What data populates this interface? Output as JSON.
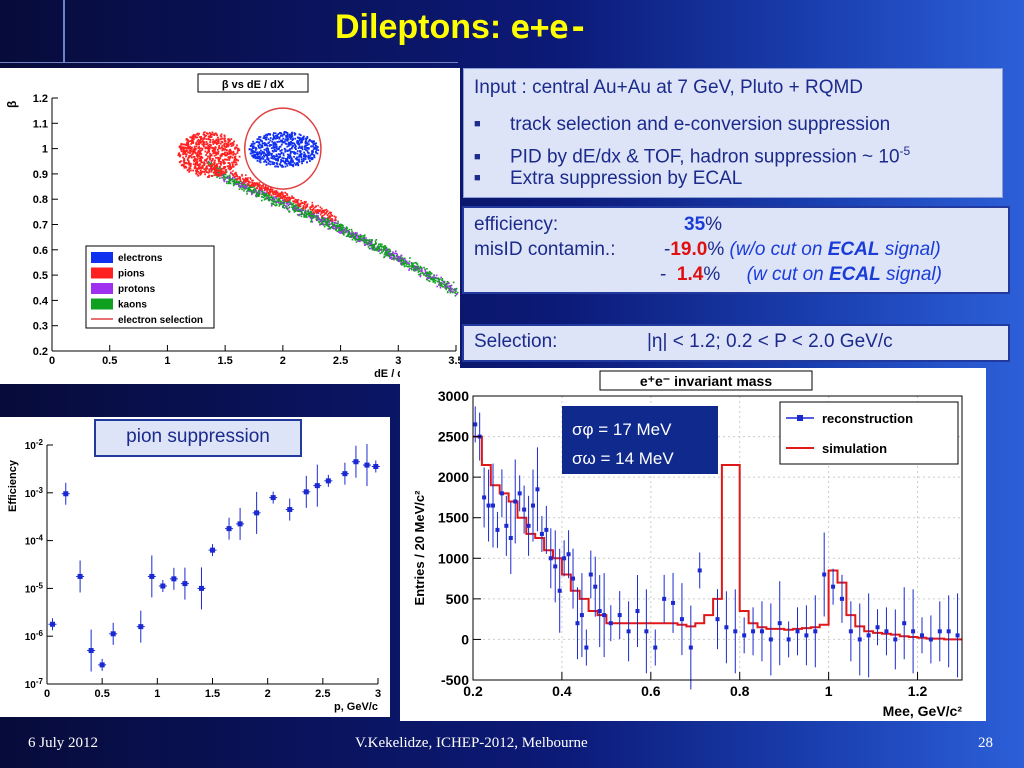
{
  "slide": {
    "title_main": "Dileptons:",
    "title_ee": "e+e-",
    "footer_date": "6 July 2012",
    "footer_author": "V.Kekelidze, ICHEP-2012, Melbourne",
    "footer_page": "28"
  },
  "input_box": {
    "line1": "Input : central Au+Au at 7 GeV, Pluto + RQMD",
    "bullets": [
      "track selection and e-conversion suppression",
      "PID by dE/dx & TOF, hadron suppression ~ 10",
      "Extra suppression by ECAL"
    ],
    "bullet2_exp": "-5"
  },
  "efficiency_box": {
    "eff_label": "efficiency:",
    "eff_value": "35",
    "eff_unit": "%",
    "misid_label": "misID contamin.:",
    "misid1_prefix": "-",
    "misid1_value": "19.0",
    "misid1_unit": "%",
    "misid1_note_a": "(w/o cut on ",
    "misid1_note_b": "ECAL",
    "misid1_note_c": " signal)",
    "misid2_prefix": "-",
    "misid2_value": "1.4",
    "misid2_unit": "%",
    "misid2_note_a": "(w cut on ",
    "misid2_note_b": "ECAL",
    "misid2_note_c": " signal)"
  },
  "selection_box": {
    "label": "Selection:",
    "value": "|η| < 1.2;    0.2 < P < 2.0 GeV/c"
  },
  "pion_label": "pion suppression",
  "colors": {
    "electrons": "#1030f0",
    "pions": "#ff2020",
    "protons": "#a030f0",
    "kaons": "#10a020",
    "electron_selection": "#e04040",
    "reco": "#1a2ad0",
    "sim": "#e01818"
  },
  "chart_data": [
    {
      "type": "scatter",
      "title": "β vs dE / dX",
      "xlabel": "dE / dX, keV/cm",
      "ylabel": "β",
      "xlim": [
        0,
        3.5
      ],
      "ylim": [
        0.2,
        1.2
      ],
      "xticks": [
        "0",
        "0.5",
        "1",
        "1.5",
        "2",
        "2.5",
        "3",
        "3.5"
      ],
      "yticks": [
        "0.2",
        "0.3",
        "0.4",
        "0.5",
        "0.6",
        "0.7",
        "0.8",
        "0.9",
        "1",
        "1.1",
        "1.2"
      ],
      "legend": [
        "electrons",
        "pions",
        "protons",
        "kaons",
        "electron selection"
      ],
      "legend_position": "bottom-left",
      "regions": {
        "electrons_center": [
          2.0,
          1.0
        ],
        "pions_center": [
          1.35,
          0.98
        ],
        "selection_ellipse_center": [
          2.0,
          1.0
        ],
        "selection_ellipse_radii": [
          0.33,
          0.16
        ]
      }
    },
    {
      "type": "scatter",
      "title": "",
      "xlabel": "p, GeV/c",
      "ylabel": "Efficiency",
      "log_y": true,
      "xlim": [
        0,
        3
      ],
      "ylim_exp": [
        -7,
        -2
      ],
      "xticks": [
        "0",
        "0.5",
        "1",
        "1.5",
        "2",
        "2.5",
        "3"
      ],
      "yticks_exp": [
        "-7",
        "-6",
        "-5",
        "-4",
        "-3",
        "-2"
      ],
      "points": [
        [
          0.05,
          -5.75
        ],
        [
          0.17,
          -3.02
        ],
        [
          0.3,
          -4.75
        ],
        [
          0.4,
          -6.3
        ],
        [
          0.5,
          -6.6
        ],
        [
          0.6,
          -5.95
        ],
        [
          0.85,
          -5.8
        ],
        [
          0.95,
          -4.75
        ],
        [
          1.05,
          -4.95
        ],
        [
          1.15,
          -4.8
        ],
        [
          1.25,
          -4.9
        ],
        [
          1.4,
          -5.0
        ],
        [
          1.5,
          -4.2
        ],
        [
          1.65,
          -3.75
        ],
        [
          1.75,
          -3.65
        ],
        [
          1.9,
          -3.42
        ],
        [
          2.05,
          -3.1
        ],
        [
          2.2,
          -3.35
        ],
        [
          2.35,
          -2.98
        ],
        [
          2.45,
          -2.85
        ],
        [
          2.55,
          -2.75
        ],
        [
          2.7,
          -2.6
        ],
        [
          2.8,
          -2.35
        ],
        [
          2.9,
          -2.42
        ],
        [
          2.98,
          -2.45
        ]
      ]
    },
    {
      "type": "line",
      "title": "e⁺e⁻ invariant mass",
      "xlabel": "Mee, GeV/c²",
      "ylabel": "Entries / 20 MeV/c²",
      "xlim": [
        0.2,
        1.3
      ],
      "ylim": [
        -500,
        3000
      ],
      "xticks": [
        "0.2",
        "0.4",
        "0.6",
        "0.8",
        "1",
        "1.2"
      ],
      "yticks": [
        "-500",
        "0",
        "500",
        "1000",
        "1500",
        "2000",
        "2500",
        "3000"
      ],
      "legend": [
        "reconstruction",
        "simulation"
      ],
      "legend_position": "top-right",
      "annotation": [
        "σφ = 17 MeV",
        "σω = 14 MeV"
      ],
      "series": [
        {
          "name": "simulation",
          "x": [
            0.2,
            0.22,
            0.24,
            0.26,
            0.28,
            0.3,
            0.32,
            0.34,
            0.36,
            0.38,
            0.4,
            0.42,
            0.44,
            0.46,
            0.48,
            0.5,
            0.52,
            0.54,
            0.56,
            0.58,
            0.6,
            0.62,
            0.64,
            0.66,
            0.68,
            0.7,
            0.72,
            0.74,
            0.76,
            0.78,
            0.8,
            0.82,
            0.84,
            0.86,
            0.88,
            0.9,
            0.92,
            0.94,
            0.96,
            0.98,
            1.0,
            1.02,
            1.04,
            1.06,
            1.08,
            1.1,
            1.12,
            1.14,
            1.16,
            1.18,
            1.2,
            1.22,
            1.24,
            1.26,
            1.28
          ],
          "values": [
            2500,
            2150,
            1900,
            1800,
            1700,
            1500,
            1300,
            1250,
            1100,
            1000,
            800,
            600,
            500,
            350,
            300,
            200,
            200,
            200,
            200,
            200,
            200,
            200,
            200,
            180,
            160,
            200,
            300,
            500,
            2150,
            2150,
            350,
            200,
            150,
            130,
            130,
            120,
            130,
            140,
            150,
            180,
            850,
            700,
            300,
            160,
            100,
            80,
            70,
            60,
            40,
            30,
            20,
            10,
            10,
            0,
            0
          ]
        },
        {
          "name": "reconstruction",
          "x": [
            0.205,
            0.215,
            0.225,
            0.235,
            0.245,
            0.255,
            0.265,
            0.275,
            0.285,
            0.295,
            0.305,
            0.315,
            0.325,
            0.335,
            0.345,
            0.355,
            0.365,
            0.375,
            0.385,
            0.395,
            0.405,
            0.415,
            0.425,
            0.435,
            0.445,
            0.455,
            0.465,
            0.475,
            0.485,
            0.495,
            0.51,
            0.53,
            0.55,
            0.57,
            0.59,
            0.61,
            0.63,
            0.65,
            0.67,
            0.69,
            0.71,
            0.73,
            0.75,
            0.77,
            0.79,
            0.81,
            0.83,
            0.85,
            0.87,
            0.89,
            0.91,
            0.93,
            0.95,
            0.97,
            0.99,
            1.01,
            1.03,
            1.05,
            1.07,
            1.09,
            1.11,
            1.13,
            1.15,
            1.17,
            1.19,
            1.21,
            1.23,
            1.25,
            1.27,
            1.29
          ],
          "values": [
            2650,
            2500,
            1750,
            1650,
            1650,
            1350,
            1800,
            1400,
            1250,
            1700,
            1800,
            1600,
            1400,
            1650,
            1850,
            1300,
            1350,
            1000,
            900,
            600,
            1000,
            1050,
            750,
            200,
            300,
            -100,
            800,
            650,
            350,
            300,
            200,
            300,
            100,
            350,
            100,
            -100,
            500,
            450,
            250,
            -100,
            850,
            2350,
            250,
            150,
            100,
            50,
            100,
            100,
            0,
            200,
            0,
            100,
            50,
            100,
            800,
            650,
            500,
            100,
            0,
            50,
            150,
            100,
            0,
            200,
            100,
            50,
            0,
            100,
            100,
            50
          ]
        }
      ]
    }
  ]
}
